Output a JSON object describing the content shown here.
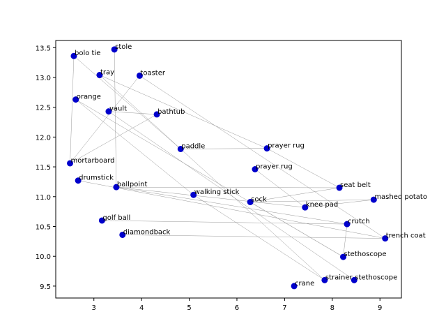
{
  "chart_data": {
    "type": "scatter",
    "title": "",
    "xlabel": "",
    "ylabel": "",
    "xlim": [
      2.2,
      9.45
    ],
    "ylim": [
      9.3,
      13.62
    ],
    "xticks": [
      3,
      4,
      5,
      6,
      7,
      8,
      9
    ],
    "yticks": [
      9.5,
      10.0,
      10.5,
      11.0,
      11.5,
      12.0,
      12.5,
      13.0,
      13.5
    ],
    "grid": false,
    "marker_color": "#0000cc",
    "line_color": "#999999",
    "points": [
      {
        "label": "stole",
        "x": 3.43,
        "y": 13.47
      },
      {
        "label": "bolo tie",
        "x": 2.58,
        "y": 13.36
      },
      {
        "label": "tray",
        "x": 3.12,
        "y": 13.04
      },
      {
        "label": "toaster",
        "x": 3.96,
        "y": 13.03
      },
      {
        "label": "orange",
        "x": 2.62,
        "y": 12.63
      },
      {
        "label": "vault",
        "x": 3.31,
        "y": 12.43
      },
      {
        "label": "bathtub",
        "x": 4.32,
        "y": 12.38
      },
      {
        "label": "paddle",
        "x": 4.82,
        "y": 11.8
      },
      {
        "label": "prayer rug",
        "x": 6.63,
        "y": 11.81
      },
      {
        "label": "mortarboard",
        "x": 2.5,
        "y": 11.56
      },
      {
        "label": "prayer rug",
        "x": 6.38,
        "y": 11.46
      },
      {
        "label": "drumstick",
        "x": 2.67,
        "y": 11.27
      },
      {
        "label": "ballpoint",
        "x": 3.47,
        "y": 11.16
      },
      {
        "label": "seat belt",
        "x": 8.15,
        "y": 11.15
      },
      {
        "label": "walking stick",
        "x": 5.09,
        "y": 11.03
      },
      {
        "label": "mashed potato",
        "x": 8.87,
        "y": 10.95
      },
      {
        "label": "sock",
        "x": 6.28,
        "y": 10.91
      },
      {
        "label": "knee pad",
        "x": 7.43,
        "y": 10.82
      },
      {
        "label": "golf ball",
        "x": 3.17,
        "y": 10.6
      },
      {
        "label": "crutch",
        "x": 8.31,
        "y": 10.54
      },
      {
        "label": "diamondback",
        "x": 3.6,
        "y": 10.36
      },
      {
        "label": "trench coat",
        "x": 9.11,
        "y": 10.3
      },
      {
        "label": "stethoscope",
        "x": 8.23,
        "y": 9.99
      },
      {
        "label": "strainer",
        "x": 7.84,
        "y": 9.6
      },
      {
        "label": "stethoscope",
        "x": 8.46,
        "y": 9.6
      },
      {
        "label": "crane",
        "x": 7.2,
        "y": 9.5
      }
    ],
    "connections": [
      [
        1,
        7
      ],
      [
        7,
        8
      ],
      [
        8,
        13
      ],
      [
        1,
        9
      ],
      [
        2,
        8
      ],
      [
        2,
        23
      ],
      [
        3,
        9
      ],
      [
        3,
        21
      ],
      [
        4,
        22
      ],
      [
        4,
        14
      ],
      [
        5,
        24
      ],
      [
        5,
        6
      ],
      [
        6,
        9
      ],
      [
        10,
        17
      ],
      [
        11,
        21
      ],
      [
        12,
        19
      ],
      [
        12,
        13
      ],
      [
        14,
        23
      ],
      [
        15,
        16
      ],
      [
        15,
        17
      ],
      [
        16,
        22
      ],
      [
        17,
        12
      ],
      [
        18,
        19
      ],
      [
        19,
        22
      ],
      [
        20,
        21
      ],
      [
        13,
        16
      ],
      [
        0,
        12
      ]
    ]
  }
}
